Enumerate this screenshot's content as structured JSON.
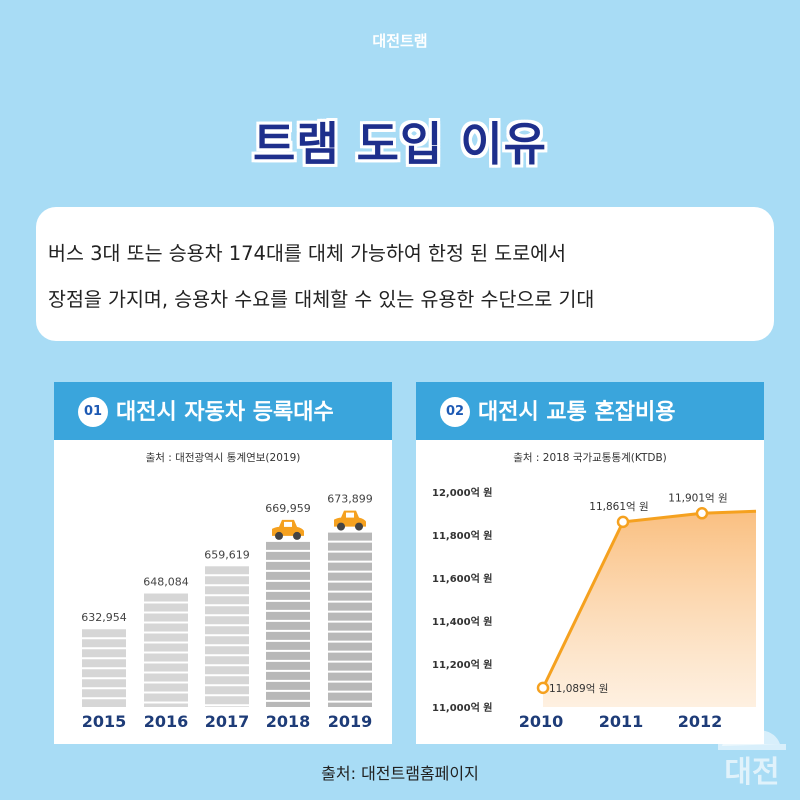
{
  "header": {
    "brand": "대전트램",
    "title": "트램 도입 이유"
  },
  "description": {
    "line1": "버스 3대 또는 승용차 174대를 대체 가능하여 한정 된 도로에서",
    "line2": "장점을 가지며, 승용차 수요를 대체할 수 있는 유용한 수단으로 기대"
  },
  "panels": {
    "left": {
      "number": "01",
      "title": "대전시 자동차 등록대수",
      "source": "출처 : 대전광역시 통계연보(2019)"
    },
    "right": {
      "number": "02",
      "title": "대전시 교통 혼잡비용",
      "source": "출처 : 2018 국가교통통계(KTDB)"
    }
  },
  "footer": {
    "source": "출처: 대전트램홈페이지"
  },
  "watermark": {
    "text": "대전"
  },
  "colors": {
    "background": "#a8dcf5",
    "title": "#1e2f8c",
    "panel_header": "#3aa5dc",
    "accent": "#f5a11f",
    "year_label": "#1e3c78"
  },
  "chart_data": [
    {
      "type": "bar",
      "categories": [
        "2015",
        "2016",
        "2017",
        "2018",
        "2019"
      ],
      "values": [
        632954,
        648084,
        659619,
        669959,
        673899
      ],
      "value_labels": [
        "632,954",
        "648,084",
        "659,619",
        "669,959",
        "673,899"
      ],
      "highlighted": [
        "2018",
        "2019"
      ],
      "icon": "car-icon"
    },
    {
      "type": "line",
      "x": [
        "2010",
        "2011",
        "2012"
      ],
      "values": [
        11089,
        11861,
        11901
      ],
      "value_labels": [
        "11,089억 원",
        "11,861억 원",
        "11,901억 원"
      ],
      "ylim": [
        11000,
        12000
      ],
      "yticks": [
        "11,000억 원",
        "11,200억 원",
        "11,400억 원",
        "11,600억 원",
        "11,800억 원",
        "12,000억 원"
      ],
      "area": true
    }
  ]
}
